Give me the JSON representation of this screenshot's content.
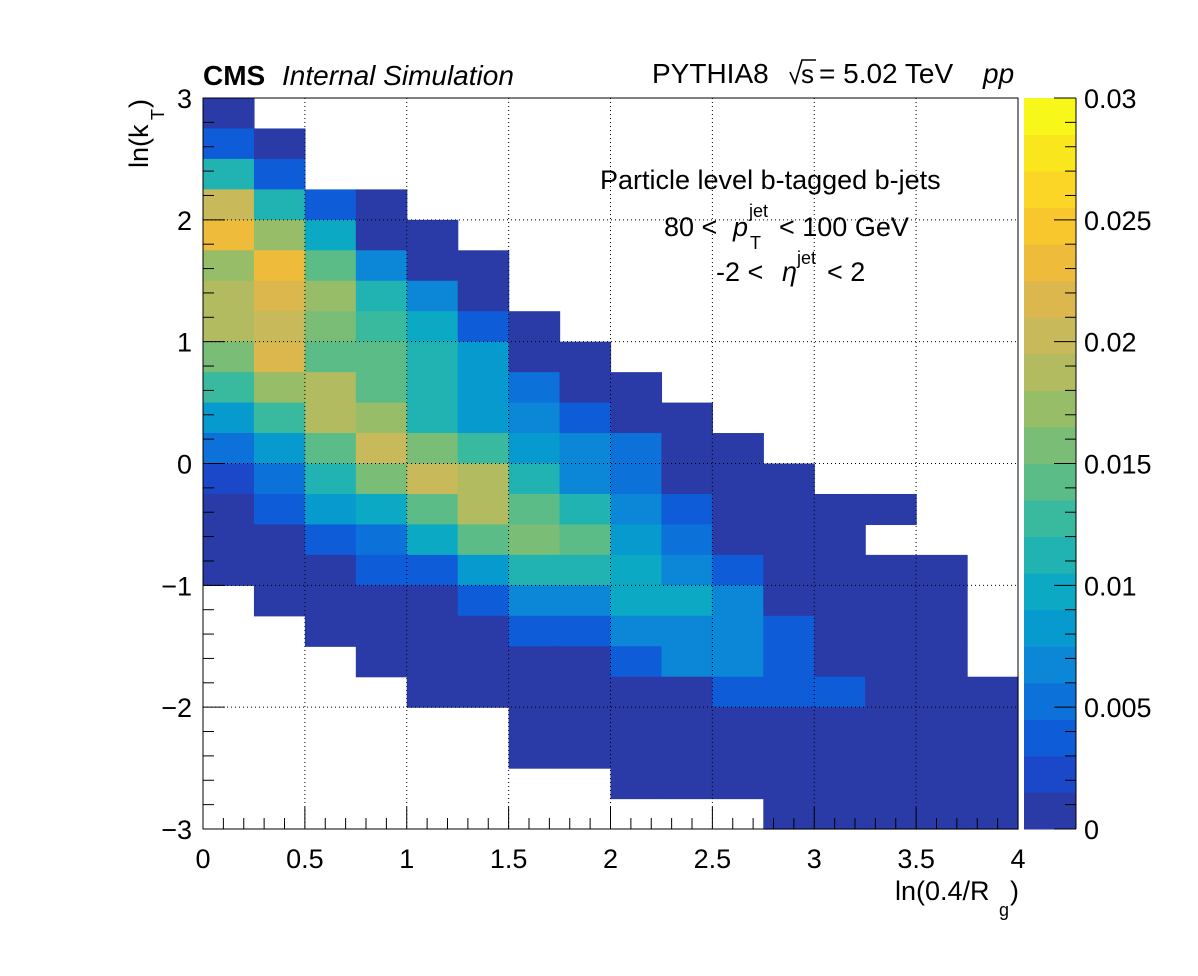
{
  "header": {
    "cms": "CMS",
    "status": "Internal Simulation",
    "generator": "PYTHIA8",
    "energy": "= 5.02 TeV",
    "sqrt_s": "s",
    "collision": "pp"
  },
  "annotation": {
    "line1": "Particle level b-tagged b-jets",
    "pt_lo": "80 <",
    "pt_sym": "p",
    "pt_sub": "T",
    "pt_sup": "jet",
    "pt_hi": "< 100 GeV",
    "eta_lo": "-2 <",
    "eta_sym": "η",
    "eta_sup": "jet",
    "eta_hi": "< 2"
  },
  "axes": {
    "x_main": "ln(0.4/R",
    "x_sub": "g",
    "x_close": ")",
    "y_main": "ln(k",
    "y_sub": "T",
    "y_close": ")"
  },
  "chart_data": {
    "type": "heatmap",
    "x_edges_start": 0,
    "x_bin_width": 0.25,
    "y_edges_start": -3,
    "y_bin_width": 0.25,
    "xlim": [
      0,
      4
    ],
    "ylim": [
      -3,
      3
    ],
    "zlim": [
      0,
      0.03
    ],
    "x_ticks": [
      "0",
      "0.5",
      "1",
      "1.5",
      "2",
      "2.5",
      "3",
      "3.5",
      "4"
    ],
    "x_tick_values": [
      0,
      0.5,
      1,
      1.5,
      2,
      2.5,
      3,
      3.5,
      4
    ],
    "y_ticks": [
      "−3",
      "−2",
      "−1",
      "0",
      "1",
      "2",
      "3"
    ],
    "y_tick_values": [
      -3,
      -2,
      -1,
      0,
      1,
      2,
      3
    ],
    "z_ticks": [
      "0",
      "0.005",
      "0.01",
      "0.015",
      "0.02",
      "0.025",
      "0.03"
    ],
    "z_tick_values": [
      0,
      0.005,
      0.01,
      0.015,
      0.02,
      0.025,
      0.03
    ],
    "grid": true,
    "palette": [
      "#2a3aa7",
      "#1a48c8",
      "#0f5cd9",
      "#0d71da",
      "#0c86d6",
      "#079ace",
      "#0ca9c4",
      "#20b3b2",
      "#39b99d",
      "#5bbc87",
      "#79bd76",
      "#98bd68",
      "#b2bb5f",
      "#c8b95a",
      "#dcb74d",
      "#eebb3b",
      "#f8c62d",
      "#fbd627",
      "#f9e61d",
      "#f7f719"
    ],
    "rows_note": "row i covers y from 3-0.25*(i+1) to 3-0.25*i; column j covers x from 0.25*j to 0.25*(j+1); null = empty bin",
    "z": [
      [
        0.0006,
        null,
        null,
        null,
        null,
        null,
        null,
        null,
        null,
        null,
        null,
        null,
        null,
        null,
        null,
        null
      ],
      [
        0.003,
        0.0008,
        null,
        null,
        null,
        null,
        null,
        null,
        null,
        null,
        null,
        null,
        null,
        null,
        null,
        null
      ],
      [
        0.0105,
        0.0038,
        null,
        null,
        null,
        null,
        null,
        null,
        null,
        null,
        null,
        null,
        null,
        null,
        null,
        null
      ],
      [
        0.0196,
        0.0115,
        0.0033,
        0.0005,
        null,
        null,
        null,
        null,
        null,
        null,
        null,
        null,
        null,
        null,
        null,
        null
      ],
      [
        0.0231,
        0.0179,
        0.0101,
        0.0006,
        0.0005,
        null,
        null,
        null,
        null,
        null,
        null,
        null,
        null,
        null,
        null,
        null
      ],
      [
        0.0167,
        0.0232,
        0.0141,
        0.0061,
        0.0008,
        0.0005,
        null,
        null,
        null,
        null,
        null,
        null,
        null,
        null,
        null,
        null
      ],
      [
        0.0181,
        0.021,
        0.0179,
        0.0116,
        0.0067,
        0.0008,
        null,
        null,
        null,
        null,
        null,
        null,
        null,
        null,
        null,
        null
      ],
      [
        0.0194,
        0.0196,
        0.0161,
        0.0132,
        0.0097,
        0.0041,
        0.0005,
        null,
        null,
        null,
        null,
        null,
        null,
        null,
        null,
        null
      ],
      [
        0.0159,
        0.0212,
        0.0145,
        0.0146,
        0.0116,
        0.0085,
        0.0006,
        0.0005,
        null,
        null,
        null,
        null,
        null,
        null,
        null,
        null
      ],
      [
        0.0121,
        0.0177,
        0.018,
        0.0145,
        0.0108,
        0.0084,
        0.0055,
        0.0008,
        0.0005,
        null,
        null,
        null,
        null,
        null,
        null,
        null
      ],
      [
        0.0087,
        0.0134,
        0.0187,
        0.0166,
        0.0105,
        0.0088,
        0.0063,
        0.0042,
        0.0006,
        0.0005,
        null,
        null,
        null,
        null,
        null,
        null
      ],
      [
        0.0048,
        0.0085,
        0.0143,
        0.02,
        0.0162,
        0.012,
        0.0087,
        0.0062,
        0.0045,
        0.0007,
        0.0005,
        null,
        null,
        null,
        null,
        null
      ],
      [
        0.0026,
        0.0054,
        0.0106,
        0.015,
        0.0204,
        0.018,
        0.0117,
        0.0074,
        0.0055,
        0.0008,
        0.0006,
        0.0005,
        null,
        null,
        null,
        null
      ],
      [
        0.0008,
        0.0035,
        0.0078,
        0.0095,
        0.0148,
        0.0181,
        0.0149,
        0.0108,
        0.0067,
        0.0037,
        0.0007,
        0.0006,
        0.0005,
        0.0005,
        null,
        null
      ],
      [
        0.0006,
        0.0008,
        0.0037,
        0.0055,
        0.0095,
        0.0143,
        0.0151,
        0.0145,
        0.0087,
        0.0058,
        0.0008,
        0.0007,
        0.0006,
        null,
        null,
        null
      ],
      [
        0.0006,
        0.0007,
        0.0008,
        0.0035,
        0.0038,
        0.0078,
        0.011,
        0.0115,
        0.0097,
        0.0074,
        0.0041,
        0.0008,
        0.0007,
        0.0006,
        0.0005,
        null
      ],
      [
        null,
        0.0008,
        0.0007,
        0.0008,
        0.0008,
        0.0041,
        0.0065,
        0.0064,
        0.009,
        0.0091,
        0.006,
        0.0008,
        0.0007,
        0.0006,
        0.0005,
        null
      ],
      [
        null,
        null,
        0.0007,
        0.0007,
        0.0008,
        0.0008,
        0.0037,
        0.0038,
        0.0063,
        0.0063,
        0.0072,
        0.0042,
        0.0008,
        0.0007,
        0.0006,
        null
      ],
      [
        null,
        null,
        null,
        0.0007,
        0.0008,
        0.0008,
        0.0008,
        0.0008,
        0.0038,
        0.006,
        0.0062,
        0.0041,
        0.0008,
        0.0007,
        0.0006,
        null
      ],
      [
        null,
        null,
        null,
        null,
        0.0008,
        0.0008,
        0.0008,
        0.0008,
        0.0008,
        0.0008,
        0.0038,
        0.0038,
        0.0035,
        0.0008,
        0.0007,
        0.0006
      ],
      [
        null,
        null,
        null,
        null,
        null,
        null,
        0.0007,
        0.0007,
        0.0007,
        0.0007,
        0.0007,
        0.0007,
        0.0007,
        0.0007,
        0.0007,
        0.0006
      ],
      [
        null,
        null,
        null,
        null,
        null,
        null,
        0.0007,
        0.0007,
        0.0006,
        0.0006,
        0.0007,
        0.0007,
        0.0006,
        0.0006,
        0.0006,
        0.0006
      ],
      [
        null,
        null,
        null,
        null,
        null,
        null,
        null,
        null,
        0.0006,
        0.0006,
        0.0006,
        0.0006,
        0.0006,
        0.0006,
        0.0006,
        0.0006
      ],
      [
        null,
        null,
        null,
        null,
        null,
        null,
        null,
        null,
        null,
        null,
        null,
        0.0006,
        0.0006,
        0.0006,
        0.0006,
        0.0006
      ]
    ]
  }
}
